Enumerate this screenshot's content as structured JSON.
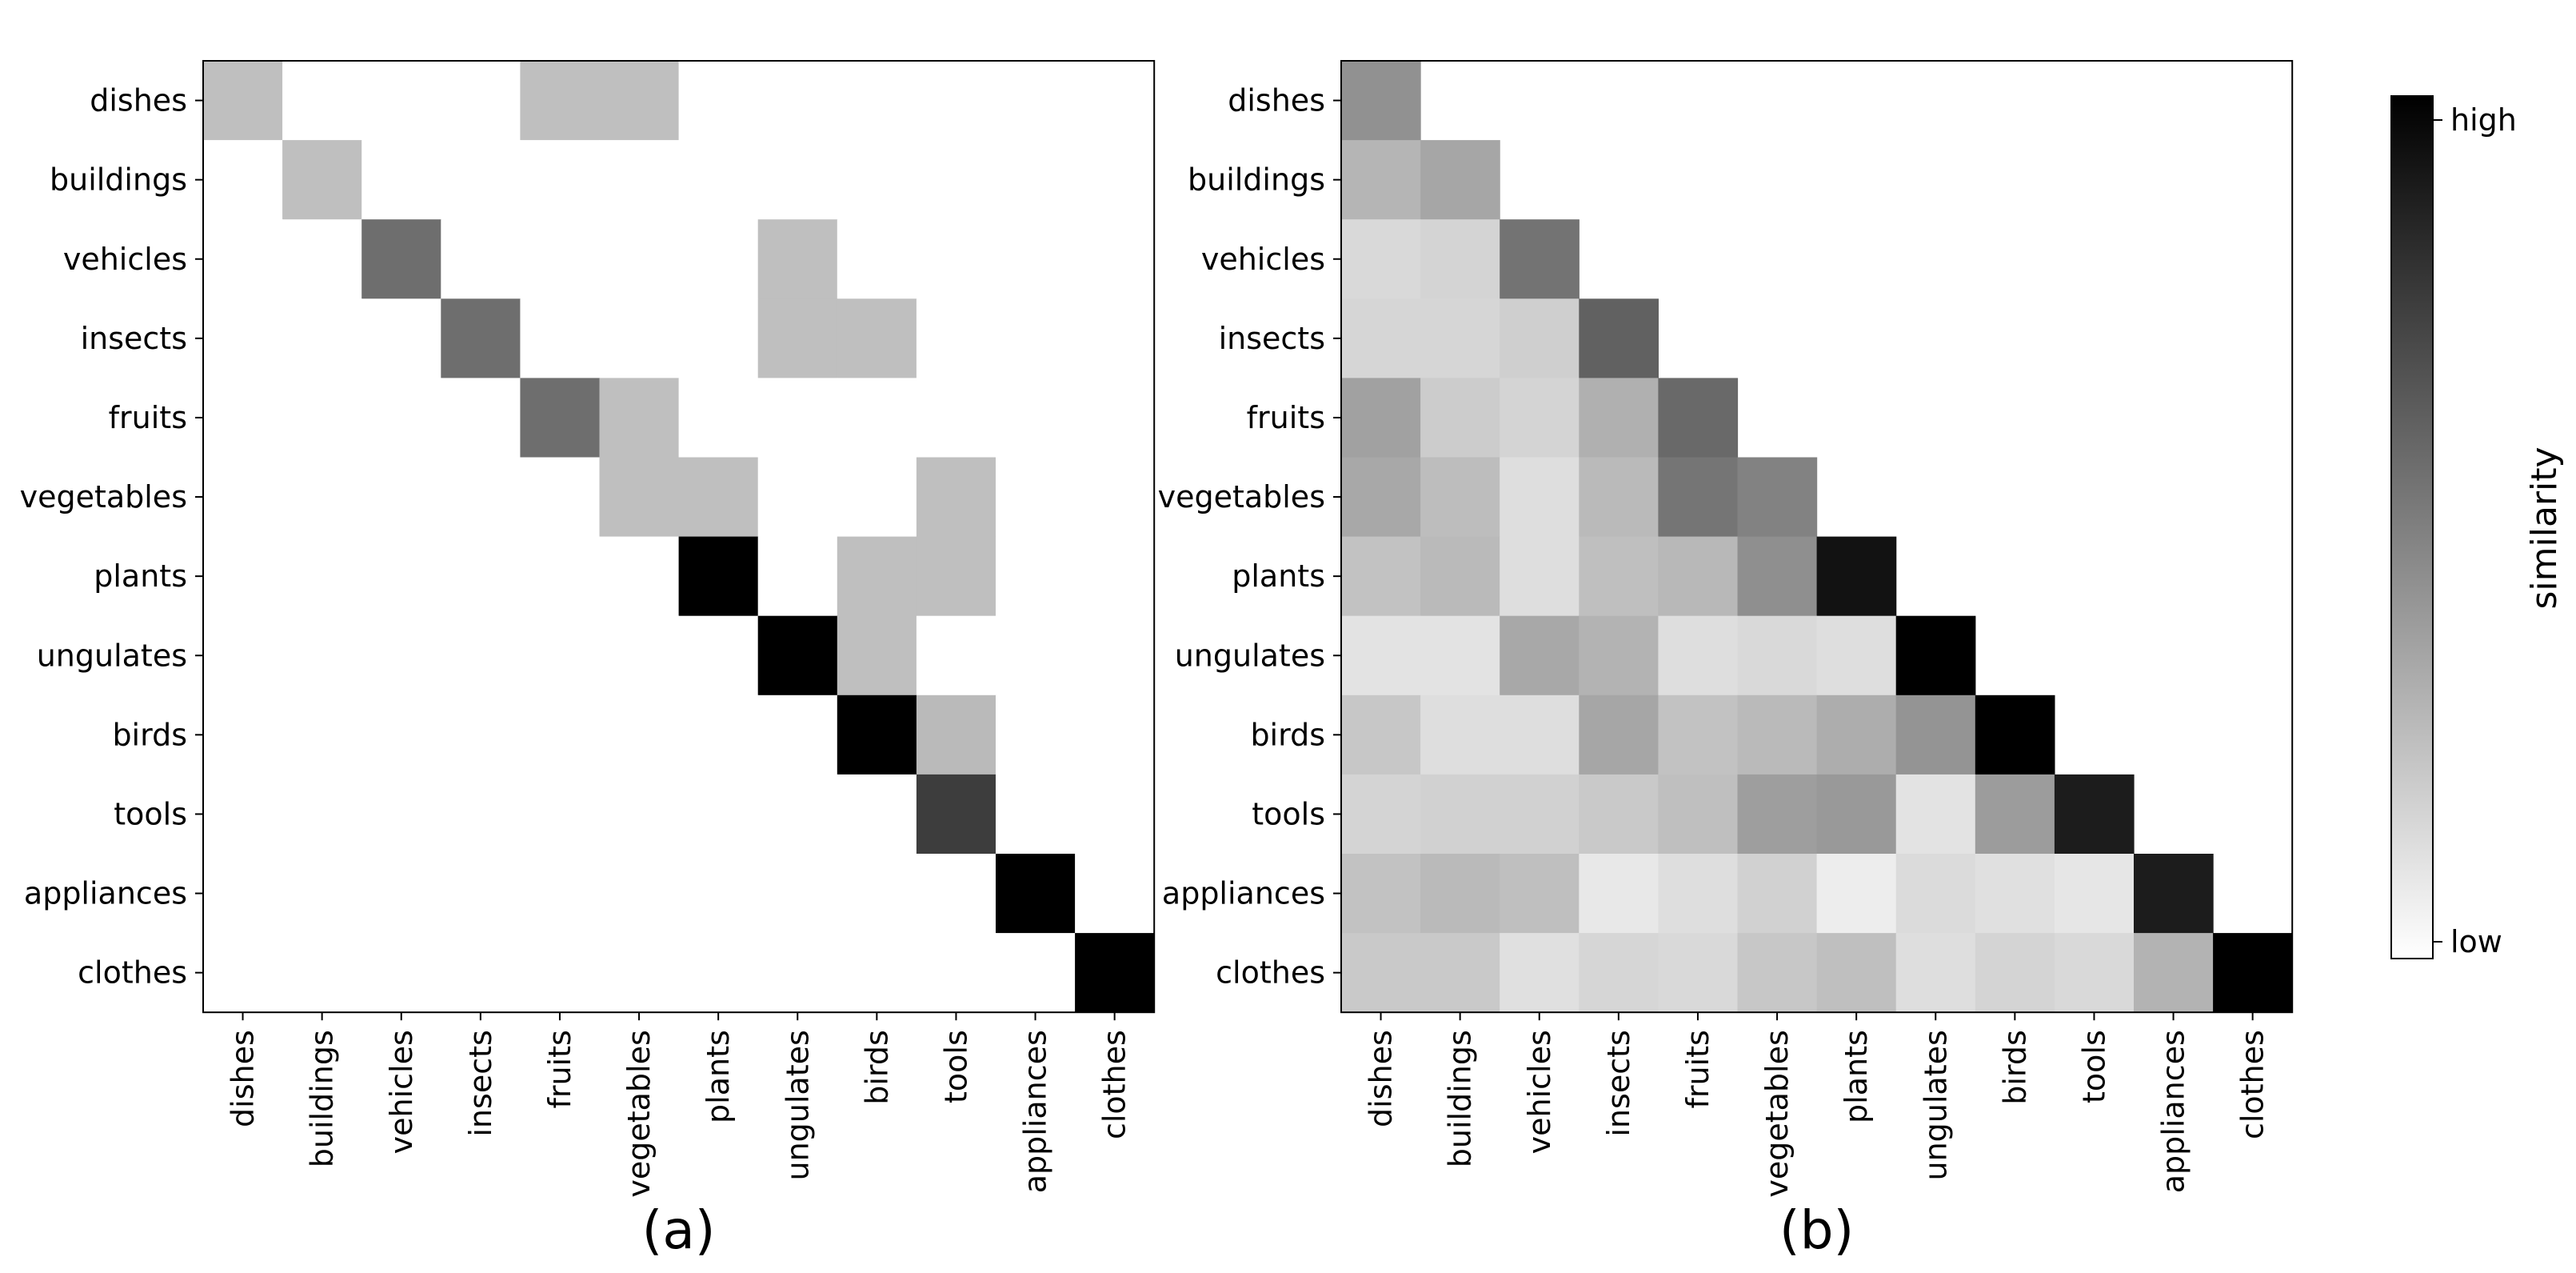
{
  "chart_data": [
    {
      "type": "heatmap",
      "caption": "(a)",
      "rows": [
        "dishes",
        "buildings",
        "vehicles",
        "insects",
        "fruits",
        "vegetables",
        "plants",
        "ungulates",
        "birds",
        "tools",
        "appliances",
        "clothes"
      ],
      "columns": [
        "dishes",
        "buildings",
        "vehicles",
        "insects",
        "fruits",
        "vegetables",
        "plants",
        "ungulates",
        "birds",
        "tools",
        "appliances",
        "clothes"
      ],
      "values": [
        [
          0.25,
          0,
          0,
          0,
          0.25,
          0.25,
          0,
          0,
          0,
          0,
          0,
          0
        ],
        [
          0,
          0.25,
          0,
          0,
          0,
          0,
          0,
          0,
          0,
          0,
          0,
          0
        ],
        [
          0,
          0,
          0.57,
          0,
          0,
          0,
          0,
          0.25,
          0,
          0,
          0,
          0
        ],
        [
          0,
          0,
          0,
          0.57,
          0,
          0,
          0,
          0.25,
          0.25,
          0,
          0,
          0
        ],
        [
          0,
          0,
          0,
          0,
          0.57,
          0.25,
          0,
          0,
          0,
          0,
          0,
          0
        ],
        [
          0,
          0,
          0,
          0,
          0,
          0.25,
          0.25,
          0,
          0,
          0.25,
          0,
          0
        ],
        [
          0,
          0,
          0,
          0,
          0,
          0,
          1.0,
          0,
          0.25,
          0.25,
          0,
          0
        ],
        [
          0,
          0,
          0,
          0,
          0,
          0,
          0,
          1.0,
          0.25,
          0,
          0,
          0
        ],
        [
          0,
          0,
          0,
          0,
          0,
          0,
          0,
          0,
          1.0,
          0.27,
          0,
          0
        ],
        [
          0,
          0,
          0,
          0,
          0,
          0,
          0,
          0,
          0,
          0.76,
          0,
          0
        ],
        [
          0,
          0,
          0,
          0,
          0,
          0,
          0,
          0,
          0,
          0,
          1.0,
          0
        ],
        [
          0,
          0,
          0,
          0,
          0,
          0,
          0,
          0,
          0,
          0,
          0,
          1.0
        ]
      ]
    },
    {
      "type": "heatmap",
      "caption": "(b)",
      "rows": [
        "dishes",
        "buildings",
        "vehicles",
        "insects",
        "fruits",
        "vegetables",
        "plants",
        "ungulates",
        "birds",
        "tools",
        "appliances",
        "clothes"
      ],
      "columns": [
        "dishes",
        "buildings",
        "vehicles",
        "insects",
        "fruits",
        "vegetables",
        "plants",
        "ungulates",
        "birds",
        "tools",
        "appliances",
        "clothes"
      ],
      "values": [
        [
          0.43,
          null,
          null,
          null,
          null,
          null,
          null,
          null,
          null,
          null,
          null,
          null
        ],
        [
          0.29,
          0.35,
          null,
          null,
          null,
          null,
          null,
          null,
          null,
          null,
          null,
          null
        ],
        [
          0.15,
          0.17,
          0.55,
          null,
          null,
          null,
          null,
          null,
          null,
          null,
          null,
          null
        ],
        [
          0.16,
          0.16,
          0.19,
          0.62,
          null,
          null,
          null,
          null,
          null,
          null,
          null,
          null
        ],
        [
          0.37,
          0.2,
          0.17,
          0.31,
          0.59,
          null,
          null,
          null,
          null,
          null,
          null,
          null
        ],
        [
          0.34,
          0.26,
          0.13,
          0.27,
          0.54,
          0.49,
          null,
          null,
          null,
          null,
          null,
          null
        ],
        [
          0.24,
          0.27,
          0.13,
          0.25,
          0.28,
          0.44,
          0.93,
          null,
          null,
          null,
          null,
          null
        ],
        [
          0.11,
          0.11,
          0.34,
          0.3,
          0.13,
          0.15,
          0.13,
          1.0,
          null,
          null,
          null,
          null
        ],
        [
          0.22,
          0.13,
          0.13,
          0.35,
          0.24,
          0.27,
          0.32,
          0.42,
          1.0,
          null,
          null,
          null
        ],
        [
          0.17,
          0.18,
          0.18,
          0.21,
          0.25,
          0.38,
          0.4,
          0.11,
          0.39,
          0.89,
          null,
          null
        ],
        [
          0.24,
          0.27,
          0.25,
          0.09,
          0.13,
          0.18,
          0.07,
          0.14,
          0.12,
          0.1,
          0.89,
          null
        ],
        [
          0.21,
          0.21,
          0.12,
          0.16,
          0.15,
          0.22,
          0.25,
          0.13,
          0.17,
          0.15,
          0.3,
          1.0
        ]
      ]
    }
  ],
  "colorbar": {
    "label": "similarity",
    "high_label": "high",
    "low_label": "low",
    "colormap": "gray_r",
    "high_color": "#000000",
    "low_color": "#ffffff"
  }
}
